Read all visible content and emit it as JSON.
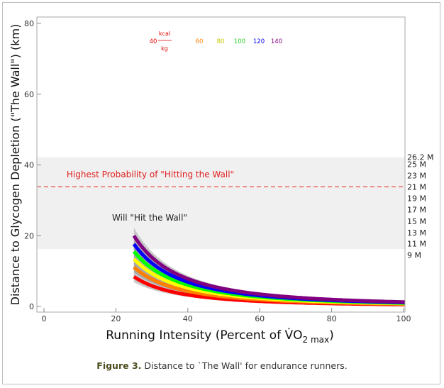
{
  "chart_data": {
    "type": "line",
    "title": "",
    "xlabel": "Running Intensity (Percent of V̇O",
    "xlabel_sub": "2 max",
    "xlabel_end": ")",
    "ylabel": "Distance to Glycogen Depletion (\"The Wall\") (km)",
    "xlim": [
      0,
      100
    ],
    "ylim": [
      0,
      80
    ],
    "xticks": [
      0,
      20,
      40,
      60,
      80,
      100
    ],
    "yticks": [
      0,
      20,
      40,
      60,
      80
    ],
    "model": "y = k * 5250 / x^2  (x = percent VO2max, y = km)",
    "series": [
      {
        "name": "40",
        "k": 1.0,
        "color": "#ff0000"
      },
      {
        "name": "60",
        "k": 1.32,
        "color": "#ff8000"
      },
      {
        "name": "80",
        "k": 1.6,
        "color": "#ffff00"
      },
      {
        "name": "100",
        "k": 1.85,
        "color": "#00ff00"
      },
      {
        "name": "120",
        "k": 2.1,
        "color": "#0000ff"
      },
      {
        "name": "140",
        "k": 2.38,
        "color": "#800080"
      }
    ],
    "outer_band": {
      "k_low": 0.82,
      "k_high": 2.65,
      "color": "#c8c8c8"
    },
    "inner_band": {
      "k_low": 1.15,
      "k_high": 2.25,
      "color": "#a9a9a9"
    },
    "wall_zone": {
      "y_low": 16.2,
      "y_high": 42.2,
      "label": "Will \"Hit the Wall\"",
      "color": "#f0f0f0"
    },
    "peak_line": {
      "y": 33.8,
      "label": "Highest Probability of \"Hitting the Wall\"",
      "color": "#e02020"
    },
    "legend_units": {
      "top": "kcal",
      "bottom": "kg"
    },
    "marathon_labels": [
      {
        "label": "26.2 M",
        "km": 42.2
      },
      {
        "label": "25 M",
        "km": 40.2
      },
      {
        "label": "23 M",
        "km": 37.0
      },
      {
        "label": "21 M",
        "km": 33.8
      },
      {
        "label": "19 M",
        "km": 30.6
      },
      {
        "label": "17 M",
        "km": 27.4
      },
      {
        "label": "15 M",
        "km": 24.1
      },
      {
        "label": "13 M",
        "km": 20.9
      },
      {
        "label": "11 M",
        "km": 17.7
      },
      {
        "label": "9 M",
        "km": 14.5
      }
    ]
  },
  "caption": {
    "label": "Figure 3.",
    "text": "Distance to `The Wall' for endurance runners."
  }
}
